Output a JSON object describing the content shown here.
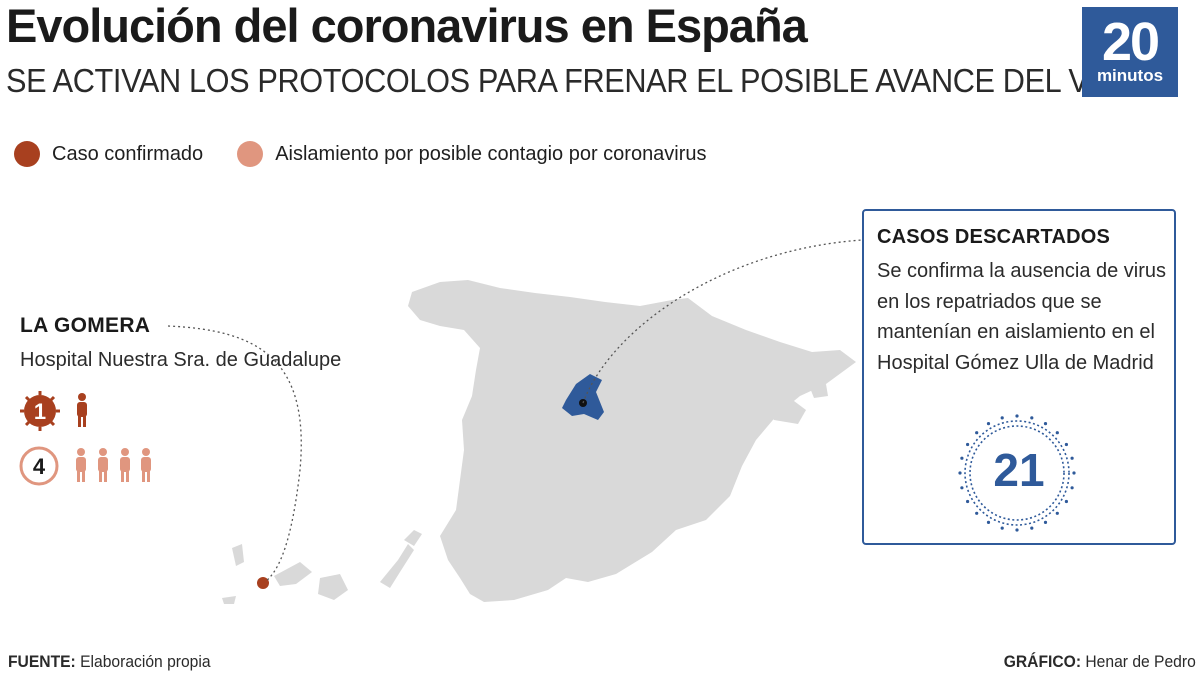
{
  "header": {
    "title": "Evolución del coronavirus en España",
    "subtitle": "SE ACTIVAN LOS PROTOCOLOS PARA FRENAR EL POSIBLE AVANCE DEL VIRUS"
  },
  "logo": {
    "number": "20",
    "word": "minutos"
  },
  "legend": [
    {
      "label": "Caso confirmado",
      "color": "#a8401f"
    },
    {
      "label": "Aislamiento por posible contagio por coronavirus",
      "color": "#e0967f"
    }
  ],
  "gomera": {
    "title": "LA GOMERA",
    "subtitle": "Hospital Nuestra Sra. de Guadalupe",
    "confirmed_count": "1",
    "isolation_count": "4",
    "confirmed_color": "#a8401f",
    "isolation_color": "#e0967f"
  },
  "descartados": {
    "title": "CASOS DESCARTADOS",
    "text": "Se confirma la ausencia de virus en los repatriados que se mantenían en aislamiento en el Hospital Gómez Ulla de Madrid",
    "count": "21",
    "accent": "#2f5a9a"
  },
  "map": {
    "land_color": "#d9d9d9",
    "madrid_color": "#2f5a9a"
  },
  "footer": {
    "source_label": "FUENTE:",
    "source_value": " Elaboración propia",
    "graphic_label": "GRÁFICO:",
    "graphic_value": " Henar de Pedro"
  }
}
